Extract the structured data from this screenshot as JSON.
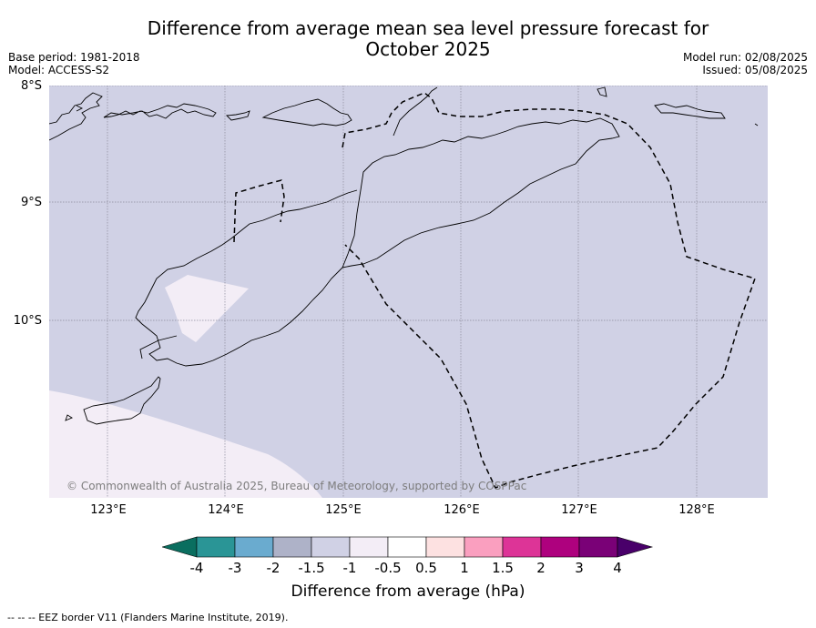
{
  "title_line1": "Difference from average mean sea level pressure forecast for",
  "title_line2": "October 2025",
  "base_period": "Base period: 1981-2018",
  "model": "Model: ACCESS-S2",
  "model_run": "Model run: 02/08/2025",
  "issued": "Issued: 05/08/2025",
  "lat_labels": [
    "8°S",
    "9°S",
    "10°S"
  ],
  "lon_labels": [
    "123°E",
    "124°E",
    "125°E",
    "126°E",
    "127°E",
    "128°E"
  ],
  "copyright": "© Commonwealth of Australia 2025, Bureau of Meteorology, supported by COSPPac",
  "colorbar": {
    "label": "Difference from average (hPa)",
    "ticks": [
      "-4",
      "-3",
      "-2",
      "-1.5",
      "-1",
      "-0.5",
      "0.5",
      "1",
      "1.5",
      "2",
      "3",
      "4"
    ],
    "colors": [
      "#0a6e5f",
      "#2a9596",
      "#6aabcf",
      "#aeb2c8",
      "#d0d1e5",
      "#f3edf6",
      "#ffffff",
      "#fde1e1",
      "#fa9fbf",
      "#dd3497",
      "#ae017e",
      "#7a0177",
      "#49006a"
    ]
  },
  "footnote": "--  --  -- EEZ border V11 (Flanders Marine Institute, 2019).",
  "map_colors": {
    "sea_bg": "#d0d1e5",
    "light_zone": "#f3edf6",
    "coast": "#000000",
    "grid": "#8a8a9a"
  }
}
